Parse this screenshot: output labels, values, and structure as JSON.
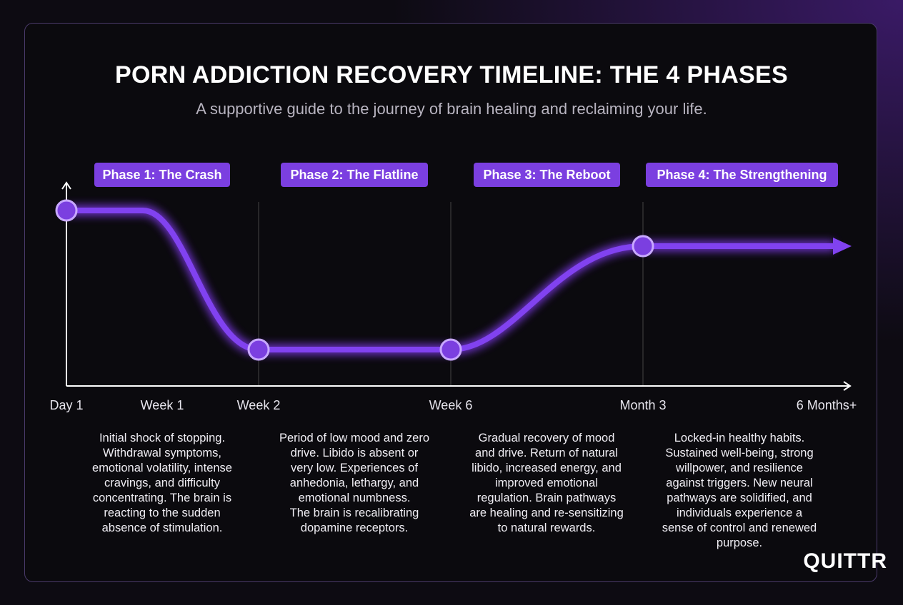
{
  "header": {
    "title": "PORN ADDICTION RECOVERY TIMELINE: THE 4 PHASES",
    "subtitle": "A supportive guide to the journey of brain healing and reclaiming your life."
  },
  "timeline": {
    "labels": [
      "Day 1",
      "Week 1",
      "Week 2",
      "Week 6",
      "Month 3",
      "6 Months+"
    ]
  },
  "phases": [
    {
      "label": "Phase 1: The Crash",
      "description_lines": [
        "Initial shock of stopping.",
        "Withdrawal symptoms,",
        "emotional volatility, intense",
        "cravings, and difficulty",
        "concentrating. The brain is",
        "reacting to the sudden",
        "absence of stimulation."
      ]
    },
    {
      "label": "Phase 2: The Flatline",
      "description_lines": [
        "Period of low mood and zero",
        "drive. Libido is absent or",
        "very low. Experiences of",
        "anhedonia, lethargy, and",
        "emotional numbness.",
        "The brain is recalibrating",
        "dopamine receptors."
      ]
    },
    {
      "label": "Phase 3: The Reboot",
      "description_lines": [
        "Gradual recovery of mood",
        "and drive. Return of natural",
        "libido, increased energy, and",
        "improved emotional",
        "regulation. Brain pathways",
        "are healing and re-sensitizing",
        "to natural rewards."
      ]
    },
    {
      "label": "Phase 4: The Strengthening",
      "description_lines": [
        "Locked-in healthy habits.",
        "Sustained well-being, strong",
        "willpower, and resilience",
        "against triggers. New neural",
        "pathways are solidified, and",
        "individuals experience a",
        "sense of control and renewed",
        "purpose."
      ]
    }
  ],
  "logo": "QUITTR"
}
